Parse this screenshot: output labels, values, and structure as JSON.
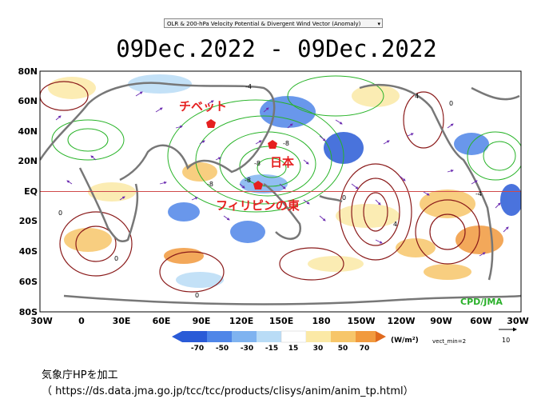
{
  "selector": {
    "selected": "OLR & 200-hPa Velocity Potential & Divergent Wind Vector (Anomaly)"
  },
  "date_range": "09Dec.2022  -  09Dec.2022",
  "lat_labels": [
    "80N",
    "60N",
    "40N",
    "20N",
    "EQ",
    "20S",
    "40S",
    "60S",
    "80S"
  ],
  "lon_labels": [
    "30W",
    "0",
    "30E",
    "60E",
    "90E",
    "120E",
    "150E",
    "180",
    "150W",
    "120W",
    "90W",
    "60W",
    "30W"
  ],
  "annotations": {
    "tibet": "チベット",
    "japan": "日本",
    "philippines_east": "フィリピンの東"
  },
  "contour_labels": [
    "-4",
    "-8",
    "-8",
    "-8",
    "-8",
    "-4",
    "0",
    "0",
    "4",
    "4",
    "0",
    "0",
    "0"
  ],
  "credit": "CPD/JMA",
  "colorbar": {
    "ticks": [
      "-70",
      "-50",
      "-30",
      "-15",
      "15",
      "30",
      "50",
      "70"
    ],
    "unit": "(W/m²)",
    "vect_min": "vect_min=2",
    "ref_vector_value": "10",
    "colors": [
      "#2a5bd7",
      "#4f86e8",
      "#7fb3f0",
      "#b9dcf6",
      "#ffffff",
      "#fbe9a6",
      "#f7c66a",
      "#f19a3e",
      "#e06a1e"
    ]
  },
  "source_note": "気象庁HPを加工",
  "source_url": "（ https://ds.data.jma.go.jp/tcc/tcc/products/clisys/anim/anim_tp.html）"
}
